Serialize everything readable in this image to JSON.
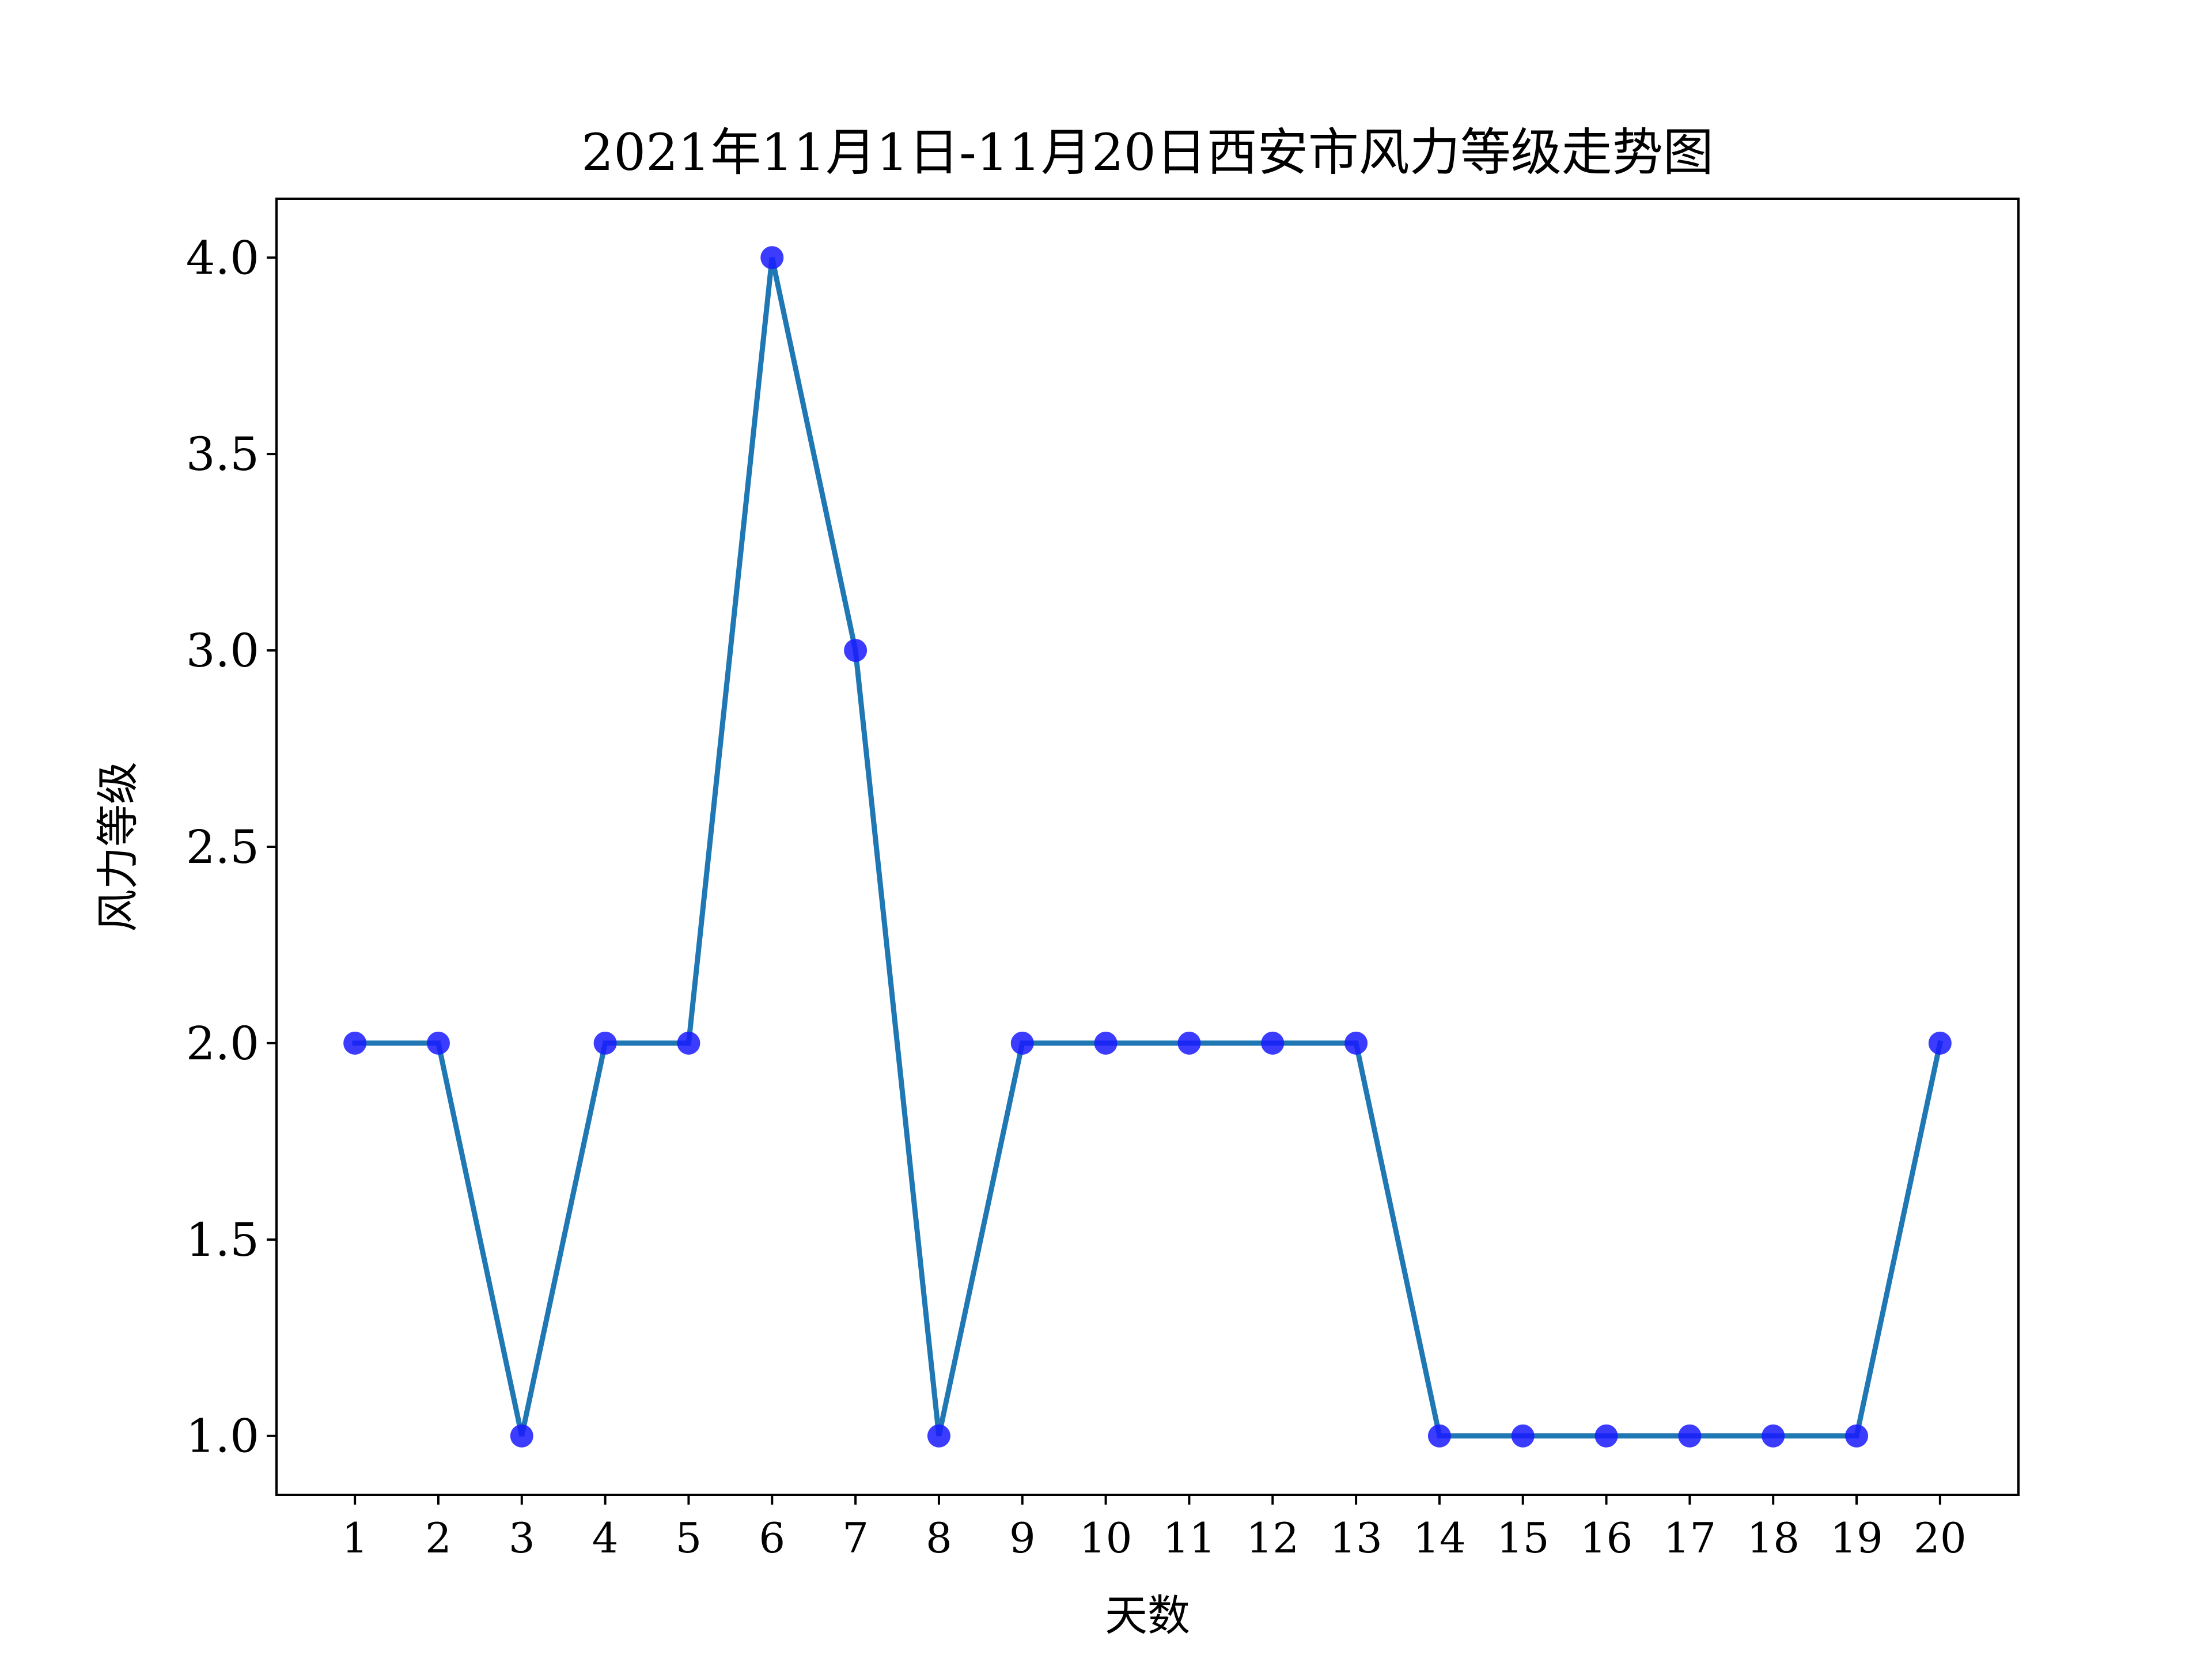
{
  "chart_data": {
    "type": "line",
    "title": "2021年11月1日-11月20日西安市风力等级走势图",
    "xlabel": "天数",
    "ylabel": "风力等级",
    "categories": [
      "1",
      "2",
      "3",
      "4",
      "5",
      "6",
      "7",
      "8",
      "9",
      "10",
      "11",
      "12",
      "13",
      "14",
      "15",
      "16",
      "17",
      "18",
      "19",
      "20"
    ],
    "x": [
      1,
      2,
      3,
      4,
      5,
      6,
      7,
      8,
      9,
      10,
      11,
      12,
      13,
      14,
      15,
      16,
      17,
      18,
      19,
      20
    ],
    "series": [
      {
        "values": [
          2,
          2,
          1,
          2,
          2,
          4,
          3,
          1,
          2,
          2,
          2,
          2,
          2,
          1,
          1,
          1,
          1,
          1,
          1,
          2
        ],
        "line_color": "#1f77b4",
        "marker_color": "#1a1aff"
      }
    ],
    "yticks": [
      "1.0",
      "1.5",
      "2.0",
      "2.5",
      "3.0",
      "3.5",
      "4.0"
    ],
    "ytick_values": [
      1.0,
      1.5,
      2.0,
      2.5,
      3.0,
      3.5,
      4.0
    ],
    "xlim": [
      0.06,
      20.94
    ],
    "ylim": [
      0.85,
      4.15
    ],
    "grid": false,
    "legend": false
  }
}
